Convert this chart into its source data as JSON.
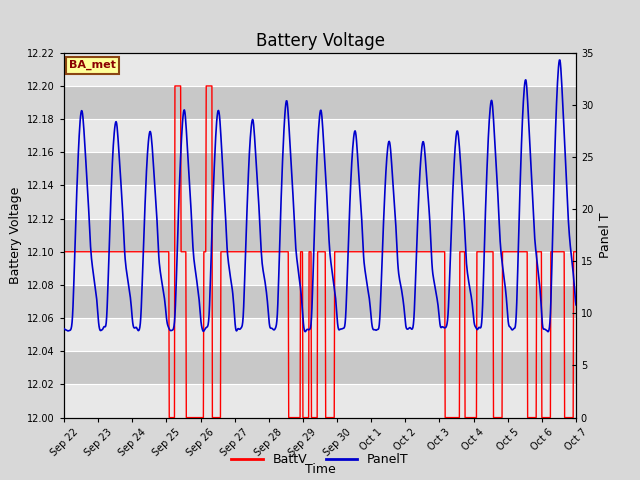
{
  "title": "Battery Voltage",
  "xlabel": "Time",
  "ylabel_left": "Battery Voltage",
  "ylabel_right": "Panel T",
  "ylim_left": [
    12.0,
    12.22
  ],
  "ylim_right": [
    0,
    35
  ],
  "yticks_left": [
    12.0,
    12.02,
    12.04,
    12.06,
    12.08,
    12.1,
    12.12,
    12.14,
    12.16,
    12.18,
    12.2,
    12.22
  ],
  "yticks_right": [
    0,
    5,
    10,
    15,
    20,
    25,
    30,
    35
  ],
  "bg_color": "#d8d8d8",
  "plot_bg_color": "#d8d8d8",
  "grid_color": "#ffffff",
  "batt_color": "#ff0000",
  "panel_color": "#0000cd",
  "legend_batt": "BattV",
  "legend_panel": "PanelT",
  "annotation_text": "BA_met",
  "annotation_bg": "#ffff99",
  "annotation_border": "#8b4513",
  "title_fontsize": 12,
  "axis_label_fontsize": 9,
  "tick_fontsize": 7,
  "legend_fontsize": 9,
  "x_tick_labels": [
    "Sep 22",
    "Sep 23",
    "Sep 24",
    "Sep 25",
    "Sep 26",
    "Sep 27",
    "Sep 28",
    "Sep 29",
    "Sep 30",
    "Oct 1",
    "Oct 2",
    "Oct 3",
    "Oct 4",
    "Oct 5",
    "Oct 6",
    "Oct 7"
  ]
}
